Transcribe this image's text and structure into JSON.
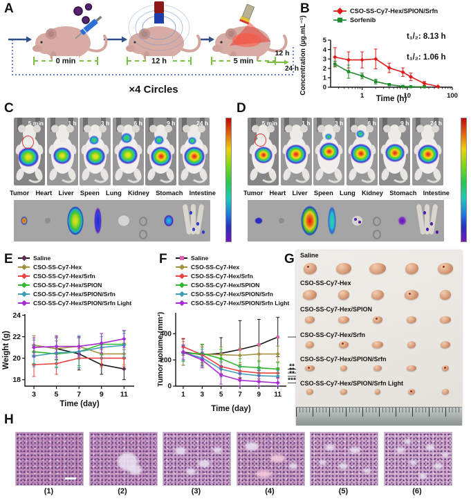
{
  "figure": {
    "background": "#ffffff",
    "heatmap_scale": [
      "#c00808",
      "#e06010",
      "#f0d010",
      "#80d818",
      "#28c850",
      "#20c8b8",
      "#2078e0",
      "#2830c0",
      "#7018b8"
    ]
  },
  "panels": {
    "A": {
      "label": "A",
      "timeline": [
        "0 min",
        "12 h",
        "5 min"
      ],
      "after": "12 h",
      "end": "24 h",
      "cycles": "×4 Circles"
    },
    "B": {
      "label": "B"
    },
    "C": {
      "label": "C",
      "times": [
        "5 min",
        "1 h",
        "3 h",
        "6 h",
        "9 h",
        "24 h"
      ],
      "organs": [
        "Tumor",
        "Heart",
        "Liver",
        "Speen",
        "Lung",
        "Kidney",
        "Stomach",
        "Intestine"
      ]
    },
    "D": {
      "label": "D",
      "times": [
        "5 min",
        "1 h",
        "3 h",
        "6 h",
        "9 h",
        "24 h"
      ],
      "organs": [
        "Tumor",
        "Heart",
        "Liver",
        "Speen",
        "Lung",
        "Kidney",
        "Stomach",
        "Intestine"
      ]
    },
    "E": {
      "label": "E"
    },
    "F": {
      "label": "F"
    },
    "G": {
      "label": "G",
      "groups": [
        "Saline",
        "CSO-SS-Cy7-Hex",
        "CSO-SS-Cy7-Hex/SPION",
        "CSO-SS-Cy7-Hex/Srfn",
        "CSO-SS-Cy7-Hex/SPION/Srfn",
        "CSO-SS-Cy7-Hex/SPION/Srfn Light"
      ]
    },
    "H": {
      "label": "H",
      "captions": [
        "(1)",
        "(2)",
        "(3)",
        "(4)",
        "(5)",
        "(6)"
      ]
    }
  },
  "chart_data": [
    {
      "id": "B",
      "type": "line",
      "xscale": "log",
      "xlabel": "Time (h)",
      "ylabel": "Concentration (µg.mL⁻¹)",
      "xlim": [
        0.2,
        100
      ],
      "ylim": [
        0,
        5
      ],
      "xticks": [
        1,
        10,
        100
      ],
      "yticks": [
        0,
        1,
        2,
        3,
        4,
        5
      ],
      "annotations": [
        "t₁/₂: 8.13 h",
        "t₁/₂: 1.06 h"
      ],
      "series": [
        {
          "name": "CSO-SS-Cy7-Hex/SPION/Srfn",
          "color": "#e01919",
          "marker_shape": "diamond",
          "x": [
            0.25,
            0.5,
            1,
            2,
            4,
            8,
            12,
            24,
            48
          ],
          "values": [
            3.2,
            2.9,
            2.9,
            3.0,
            2.05,
            1.6,
            1.1,
            0.4,
            0.07
          ],
          "err": [
            1.0,
            0.85,
            0.85,
            1.05,
            0.5,
            0.45,
            0.4,
            0.2,
            0.05
          ]
        },
        {
          "name": "Sorfenib",
          "color": "#1f8b2c",
          "marker_shape": "square",
          "x": [
            0.25,
            0.5,
            1,
            2,
            4,
            8,
            12,
            24
          ],
          "values": [
            2.45,
            1.65,
            1.2,
            0.6,
            0.28,
            0.08,
            0.05,
            0.04
          ],
          "err": [
            0.3,
            0.7,
            0.3,
            0.25,
            0.12,
            0.06,
            0.04,
            0.03
          ]
        }
      ]
    },
    {
      "id": "E",
      "type": "line",
      "xlabel": "Time (day)",
      "ylabel": "Weight (g)",
      "x": [
        3,
        5,
        7,
        9,
        11
      ],
      "ylim": [
        17.4,
        24.1
      ],
      "yticks": [
        18,
        20,
        22,
        24
      ],
      "series": [
        {
          "name": "Saline",
          "color": "#151515",
          "marker": "#5c2a52",
          "marker_shape": "diamond",
          "values": [
            21.2,
            20.9,
            20.4,
            19.4,
            19.0
          ],
          "err": [
            0.9,
            1.0,
            1.5,
            0.9,
            1.0
          ]
        },
        {
          "name": "CSO-SS-Cy7-Hex",
          "color": "#a3923f",
          "marker_shape": "diamond",
          "values": [
            21.2,
            20.9,
            21.1,
            20.4,
            20.4
          ],
          "err": [
            0.9,
            1.1,
            0.9,
            0.9,
            1.0
          ]
        },
        {
          "name": "CSO-SS-Cy7-Hex/Srfn",
          "color": "#ee4242",
          "marker_shape": "diamond",
          "values": [
            19.4,
            19.5,
            20.0,
            20.0,
            20.0
          ],
          "err": [
            1.1,
            1.0,
            0.9,
            0.8,
            0.8
          ]
        },
        {
          "name": "CSO-SS-Cy7-Hex/SPION",
          "color": "#2fb82f",
          "marker_shape": "diamond",
          "values": [
            20.6,
            20.4,
            20.6,
            21.3,
            21.3
          ],
          "err": [
            1.1,
            1.2,
            1.3,
            1.0,
            1.2
          ]
        },
        {
          "name": "CSO-SS-Cy7-Hex/SPION/Srfn",
          "color": "#3d9fb5",
          "marker_shape": "diamond",
          "values": [
            20.2,
            20.5,
            20.6,
            21.0,
            21.2
          ],
          "err": [
            1.0,
            1.4,
            1.5,
            1.0,
            1.1
          ]
        },
        {
          "name": "CSO-SS-Cy7-Hex/SPION/Srfn Light",
          "color": "#a82ad4",
          "marker_shape": "diamond",
          "values": [
            21.0,
            21.1,
            21.1,
            21.4,
            21.8
          ],
          "err": [
            0.9,
            1.0,
            0.9,
            0.9,
            0.8
          ]
        }
      ]
    },
    {
      "id": "F",
      "type": "line",
      "xlabel": "Time (day)",
      "ylabel": "Tumor volume (mm³)",
      "x": [
        1,
        3,
        5,
        7,
        9,
        11
      ],
      "ylim": [
        0,
        560
      ],
      "yticks": [
        0,
        200,
        400
      ],
      "significance": [
        "**",
        "**",
        "**",
        "***"
      ],
      "series": [
        {
          "name": "Saline",
          "color": "#151515",
          "marker": "#e060b0",
          "marker_shape": "square",
          "values": [
            260,
            240,
            250,
            280,
            315,
            375
          ],
          "err": [
            100,
            80,
            120,
            220,
            195,
            150
          ]
        },
        {
          "name": "CSO-SS-Cy7-Hex",
          "color": "#a3923f",
          "marker_shape": "diamond",
          "values": [
            250,
            245,
            240,
            235,
            245,
            245
          ],
          "err": [
            90,
            70,
            60,
            55,
            60,
            60
          ]
        },
        {
          "name": "CSO-SS-Cy7-Hex/Srfn",
          "color": "#ee4242",
          "marker_shape": "diamond",
          "values": [
            300,
            240,
            150,
            115,
            100,
            100
          ],
          "err": [
            65,
            60,
            55,
            50,
            45,
            40
          ]
        },
        {
          "name": "CSO-SS-Cy7-Hex/SPION",
          "color": "#2fb82f",
          "marker_shape": "diamond",
          "values": [
            250,
            250,
            210,
            150,
            140,
            130
          ],
          "err": [
            60,
            70,
            70,
            60,
            55,
            50
          ]
        },
        {
          "name": "CSO-SS-Cy7-Hex/SPION/Srfn",
          "color": "#3d9fb5",
          "marker_shape": "diamond",
          "values": [
            255,
            215,
            130,
            95,
            80,
            75
          ],
          "err": [
            60,
            65,
            60,
            55,
            50,
            45
          ]
        },
        {
          "name": "CSO-SS-Cy7-Hex/SPION/Srfn Light",
          "color": "#a82ad4",
          "marker_shape": "diamond",
          "values": [
            260,
            200,
            85,
            45,
            35,
            25
          ],
          "err": [
            55,
            60,
            70,
            55,
            45,
            40
          ]
        }
      ]
    }
  ]
}
